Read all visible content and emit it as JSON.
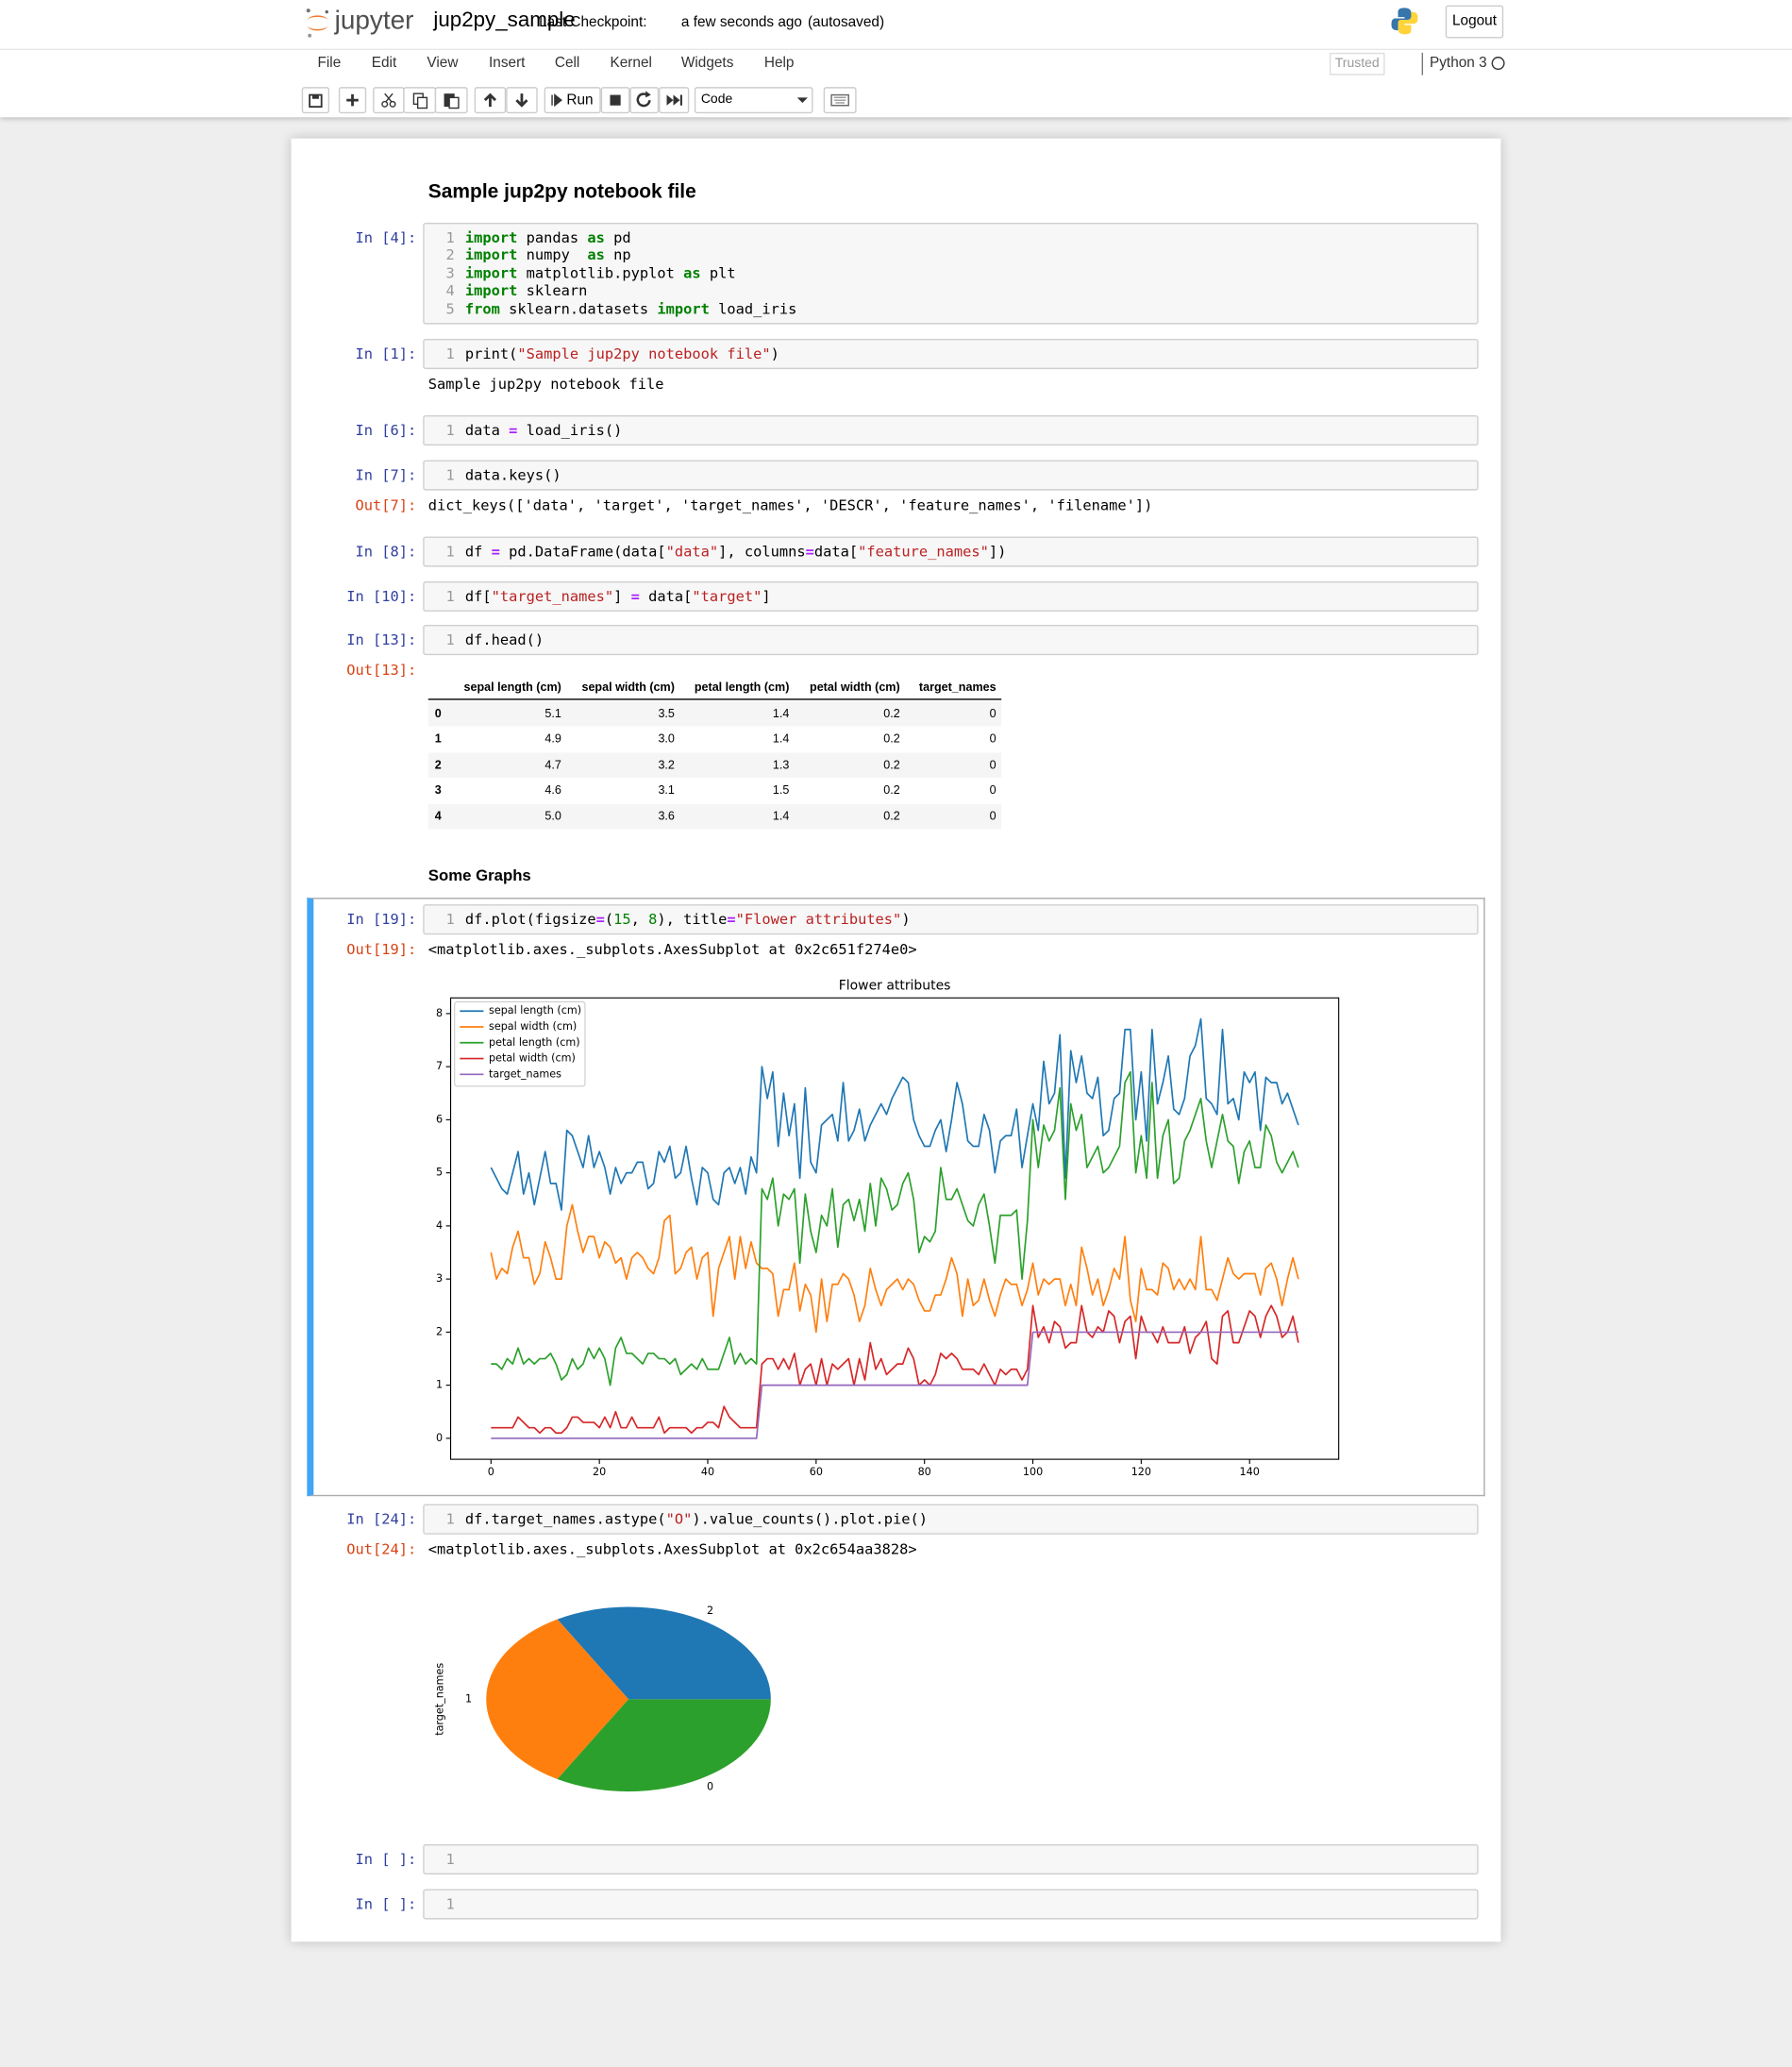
{
  "header": {
    "logo": "jupyter",
    "notebook_name": "jup2py_sample",
    "checkpoint_label": "Last Checkpoint:",
    "checkpoint_time": "a few seconds ago",
    "autosave": "(autosaved)",
    "logout": "Logout"
  },
  "menu": {
    "items": [
      "File",
      "Edit",
      "View",
      "Insert",
      "Cell",
      "Kernel",
      "Widgets",
      "Help"
    ],
    "trusted": "Trusted",
    "kernel": "Python 3"
  },
  "toolbar": {
    "run": "Run",
    "cell_type": "Code"
  },
  "cells": [
    {
      "type": "markdown",
      "text": "Sample jup2py notebook file"
    },
    {
      "type": "code",
      "prompt": "In [4]:",
      "lines": [
        [
          "1",
          "import pandas as pd"
        ],
        [
          "2",
          "import numpy  as np"
        ],
        [
          "3",
          "import matplotlib.pyplot as plt"
        ],
        [
          "4",
          "import sklearn"
        ],
        [
          "5",
          "from sklearn.datasets import load_iris"
        ]
      ]
    },
    {
      "type": "code",
      "prompt": "In [1]:",
      "lines": [
        [
          "1",
          "print(\"Sample jup2py notebook file\")"
        ]
      ],
      "output": "Sample jup2py notebook file"
    },
    {
      "type": "code",
      "prompt": "In [6]:",
      "lines": [
        [
          "1",
          "data = load_iris()"
        ]
      ]
    },
    {
      "type": "code",
      "prompt": "In [7]:",
      "lines": [
        [
          "1",
          "data.keys()"
        ]
      ],
      "out_prompt": "Out[7]:",
      "output": "dict_keys(['data', 'target', 'target_names', 'DESCR', 'feature_names', 'filename'])"
    },
    {
      "type": "code",
      "prompt": "In [8]:",
      "lines": [
        [
          "1",
          "df = pd.DataFrame(data[\"data\"], columns=data[\"feature_names\"])"
        ]
      ]
    },
    {
      "type": "code",
      "prompt": "In [10]:",
      "lines": [
        [
          "1",
          "df[\"target_names\"] = data[\"target\"]"
        ]
      ]
    },
    {
      "type": "code",
      "prompt": "In [13]:",
      "lines": [
        [
          "1",
          "df.head()"
        ]
      ],
      "out_prompt": "Out[13]:",
      "output_table": {
        "columns": [
          "sepal length (cm)",
          "sepal width (cm)",
          "petal length (cm)",
          "petal width (cm)",
          "target_names"
        ],
        "index": [
          "0",
          "1",
          "2",
          "3",
          "4"
        ],
        "rows": [
          [
            "5.1",
            "3.5",
            "1.4",
            "0.2",
            "0"
          ],
          [
            "4.9",
            "3.0",
            "1.4",
            "0.2",
            "0"
          ],
          [
            "4.7",
            "3.2",
            "1.3",
            "0.2",
            "0"
          ],
          [
            "4.6",
            "3.1",
            "1.5",
            "0.2",
            "0"
          ],
          [
            "5.0",
            "3.6",
            "1.4",
            "0.2",
            "0"
          ]
        ]
      }
    },
    {
      "type": "markdown",
      "text": "Some Graphs"
    },
    {
      "type": "code",
      "prompt": "In [19]:",
      "lines": [
        [
          "1",
          "df.plot(figsize=(15, 8), title=\"Flower attributes\")"
        ]
      ],
      "out_prompt": "Out[19]:",
      "output": "<matplotlib.axes._subplots.AxesSubplot at 0x2c651f274e0>"
    },
    {
      "type": "code",
      "prompt": "In [24]:",
      "lines": [
        [
          "1",
          "df.target_names.astype(\"O\").value_counts().plot.pie()"
        ]
      ],
      "out_prompt": "Out[24]:",
      "output": "<matplotlib.axes._subplots.AxesSubplot at 0x2c654aa3828>"
    },
    {
      "type": "code",
      "prompt": "In [ ]:",
      "lines": [
        [
          "1",
          ""
        ]
      ]
    },
    {
      "type": "code",
      "prompt": "In [ ]:",
      "lines": [
        [
          "1",
          ""
        ]
      ]
    }
  ],
  "chart_data": [
    {
      "type": "line",
      "title": "Flower attributes",
      "x": [
        0,
        1,
        2,
        3,
        4,
        5,
        6,
        7,
        8,
        9,
        10,
        11,
        12,
        13,
        14,
        15,
        16,
        17,
        18,
        19,
        20,
        21,
        22,
        23,
        24,
        25,
        26,
        27,
        28,
        29,
        30,
        31,
        32,
        33,
        34,
        35,
        36,
        37,
        38,
        39,
        40,
        41,
        42,
        43,
        44,
        45,
        46,
        47,
        48,
        49,
        50,
        51,
        52,
        53,
        54,
        55,
        56,
        57,
        58,
        59,
        60,
        61,
        62,
        63,
        64,
        65,
        66,
        67,
        68,
        69,
        70,
        71,
        72,
        73,
        74,
        75,
        76,
        77,
        78,
        79,
        80,
        81,
        82,
        83,
        84,
        85,
        86,
        87,
        88,
        89,
        90,
        91,
        92,
        93,
        94,
        95,
        96,
        97,
        98,
        99,
        100,
        101,
        102,
        103,
        104,
        105,
        106,
        107,
        108,
        109,
        110,
        111,
        112,
        113,
        114,
        115,
        116,
        117,
        118,
        119,
        120,
        121,
        122,
        123,
        124,
        125,
        126,
        127,
        128,
        129,
        130,
        131,
        132,
        133,
        134,
        135,
        136,
        137,
        138,
        139,
        140,
        141,
        142,
        143,
        144,
        145,
        146,
        147,
        148,
        149
      ],
      "series": [
        {
          "name": "sepal length (cm)",
          "color": "#1f77b4",
          "values": [
            5.1,
            4.9,
            4.7,
            4.6,
            5.0,
            5.4,
            4.6,
            5.0,
            4.4,
            4.9,
            5.4,
            4.8,
            4.8,
            4.3,
            5.8,
            5.7,
            5.4,
            5.1,
            5.7,
            5.1,
            5.4,
            5.1,
            4.6,
            5.1,
            4.8,
            5.0,
            5.0,
            5.2,
            5.2,
            4.7,
            4.8,
            5.4,
            5.2,
            5.5,
            4.9,
            5.0,
            5.5,
            4.9,
            4.4,
            5.1,
            5.0,
            4.5,
            4.4,
            5.0,
            5.1,
            4.8,
            5.1,
            4.6,
            5.3,
            5.0,
            7.0,
            6.4,
            6.9,
            5.5,
            6.5,
            5.7,
            6.3,
            4.9,
            6.6,
            5.2,
            5.0,
            5.9,
            6.0,
            6.1,
            5.6,
            6.7,
            5.6,
            5.8,
            6.2,
            5.6,
            5.9,
            6.1,
            6.3,
            6.1,
            6.4,
            6.6,
            6.8,
            6.7,
            6.0,
            5.7,
            5.5,
            5.5,
            5.8,
            6.0,
            5.4,
            6.0,
            6.7,
            6.3,
            5.6,
            5.5,
            5.5,
            6.1,
            5.8,
            5.0,
            5.6,
            5.7,
            5.7,
            6.2,
            5.1,
            5.7,
            6.3,
            5.8,
            7.1,
            6.3,
            6.5,
            7.6,
            4.9,
            7.3,
            6.7,
            7.2,
            6.5,
            6.4,
            6.8,
            5.7,
            5.8,
            6.4,
            6.5,
            7.7,
            7.7,
            6.0,
            6.9,
            5.6,
            7.7,
            6.3,
            6.7,
            7.2,
            6.2,
            6.1,
            6.4,
            7.2,
            7.4,
            7.9,
            6.4,
            6.3,
            6.1,
            7.7,
            6.3,
            6.4,
            6.0,
            6.9,
            6.7,
            6.9,
            5.8,
            6.8,
            6.7,
            6.7,
            6.3,
            6.5,
            6.2,
            5.9
          ]
        },
        {
          "name": "sepal width (cm)",
          "color": "#ff7f0e",
          "values": [
            3.5,
            3.0,
            3.2,
            3.1,
            3.6,
            3.9,
            3.4,
            3.4,
            2.9,
            3.1,
            3.7,
            3.4,
            3.0,
            3.0,
            4.0,
            4.4,
            3.9,
            3.5,
            3.8,
            3.8,
            3.4,
            3.7,
            3.6,
            3.3,
            3.4,
            3.0,
            3.4,
            3.5,
            3.4,
            3.2,
            3.1,
            3.4,
            4.1,
            4.2,
            3.1,
            3.2,
            3.5,
            3.6,
            3.0,
            3.4,
            3.5,
            2.3,
            3.2,
            3.5,
            3.8,
            3.0,
            3.8,
            3.2,
            3.7,
            3.3,
            3.2,
            3.2,
            3.1,
            2.3,
            2.8,
            2.8,
            3.3,
            2.4,
            2.9,
            2.7,
            2.0,
            3.0,
            2.2,
            2.9,
            2.9,
            3.1,
            3.0,
            2.7,
            2.2,
            2.5,
            3.2,
            2.8,
            2.5,
            2.8,
            2.9,
            3.0,
            2.8,
            3.0,
            2.9,
            2.6,
            2.4,
            2.4,
            2.7,
            2.7,
            3.0,
            3.4,
            3.1,
            2.3,
            3.0,
            2.5,
            2.6,
            3.0,
            2.6,
            2.3,
            2.7,
            3.0,
            2.9,
            2.9,
            2.5,
            2.8,
            3.3,
            2.7,
            3.0,
            2.9,
            3.0,
            3.0,
            2.5,
            2.9,
            2.5,
            3.6,
            3.2,
            2.7,
            3.0,
            2.5,
            2.8,
            3.2,
            3.0,
            3.8,
            2.6,
            2.2,
            3.2,
            2.8,
            2.8,
            2.7,
            3.3,
            3.2,
            2.8,
            3.0,
            2.8,
            3.0,
            2.8,
            3.8,
            2.8,
            2.8,
            2.6,
            3.0,
            3.4,
            3.1,
            3.0,
            3.1,
            3.1,
            3.1,
            2.7,
            3.2,
            3.3,
            3.0,
            2.5,
            3.0,
            3.4,
            3.0
          ]
        },
        {
          "name": "petal length (cm)",
          "color": "#2ca02c",
          "values": [
            1.4,
            1.4,
            1.3,
            1.5,
            1.4,
            1.7,
            1.4,
            1.5,
            1.4,
            1.5,
            1.5,
            1.6,
            1.4,
            1.1,
            1.2,
            1.5,
            1.3,
            1.4,
            1.7,
            1.5,
            1.7,
            1.5,
            1.0,
            1.7,
            1.9,
            1.6,
            1.6,
            1.5,
            1.4,
            1.6,
            1.6,
            1.5,
            1.5,
            1.4,
            1.5,
            1.2,
            1.3,
            1.4,
            1.3,
            1.5,
            1.3,
            1.3,
            1.3,
            1.6,
            1.9,
            1.4,
            1.6,
            1.4,
            1.5,
            1.4,
            4.7,
            4.5,
            4.9,
            4.0,
            4.6,
            4.5,
            4.7,
            3.3,
            4.6,
            3.9,
            3.5,
            4.2,
            4.0,
            4.7,
            3.6,
            4.4,
            4.5,
            4.1,
            4.5,
            3.9,
            4.8,
            4.0,
            4.9,
            4.7,
            4.3,
            4.4,
            4.8,
            5.0,
            4.5,
            3.5,
            3.8,
            3.7,
            3.9,
            5.1,
            4.5,
            4.5,
            4.7,
            4.4,
            4.1,
            4.0,
            4.4,
            4.6,
            4.0,
            3.3,
            4.2,
            4.2,
            4.2,
            4.3,
            3.0,
            4.1,
            6.0,
            5.1,
            5.9,
            5.6,
            5.8,
            6.6,
            4.5,
            6.3,
            5.8,
            6.1,
            5.1,
            5.3,
            5.5,
            5.0,
            5.1,
            5.3,
            5.5,
            6.7,
            6.9,
            5.0,
            5.7,
            4.9,
            6.7,
            4.9,
            5.7,
            6.0,
            4.8,
            4.9,
            5.6,
            5.8,
            6.1,
            6.4,
            5.6,
            5.1,
            5.6,
            6.1,
            5.6,
            5.5,
            4.8,
            5.4,
            5.6,
            5.1,
            5.1,
            5.9,
            5.7,
            5.2,
            5.0,
            5.2,
            5.4,
            5.1
          ]
        },
        {
          "name": "petal width (cm)",
          "color": "#d62728",
          "values": [
            0.2,
            0.2,
            0.2,
            0.2,
            0.2,
            0.4,
            0.3,
            0.2,
            0.2,
            0.1,
            0.2,
            0.2,
            0.1,
            0.1,
            0.2,
            0.4,
            0.4,
            0.3,
            0.3,
            0.3,
            0.2,
            0.4,
            0.2,
            0.5,
            0.2,
            0.2,
            0.4,
            0.2,
            0.2,
            0.2,
            0.2,
            0.4,
            0.1,
            0.2,
            0.2,
            0.2,
            0.2,
            0.1,
            0.2,
            0.2,
            0.3,
            0.3,
            0.2,
            0.6,
            0.4,
            0.3,
            0.2,
            0.2,
            0.2,
            0.2,
            1.4,
            1.5,
            1.5,
            1.3,
            1.5,
            1.3,
            1.6,
            1.0,
            1.3,
            1.4,
            1.0,
            1.5,
            1.0,
            1.4,
            1.3,
            1.4,
            1.5,
            1.0,
            1.5,
            1.1,
            1.8,
            1.3,
            1.5,
            1.2,
            1.3,
            1.4,
            1.4,
            1.7,
            1.5,
            1.0,
            1.1,
            1.0,
            1.2,
            1.6,
            1.5,
            1.6,
            1.5,
            1.3,
            1.3,
            1.3,
            1.2,
            1.4,
            1.2,
            1.0,
            1.3,
            1.2,
            1.3,
            1.3,
            1.1,
            1.3,
            2.5,
            1.9,
            2.1,
            1.8,
            2.2,
            2.1,
            1.7,
            1.8,
            1.8,
            2.5,
            2.0,
            1.9,
            2.1,
            2.0,
            2.4,
            2.3,
            1.8,
            2.2,
            2.3,
            1.5,
            2.3,
            2.0,
            2.0,
            1.8,
            2.1,
            1.8,
            1.8,
            1.8,
            2.1,
            1.6,
            1.9,
            2.0,
            2.2,
            1.5,
            1.4,
            2.3,
            2.4,
            1.8,
            1.8,
            2.1,
            2.4,
            2.3,
            1.9,
            2.3,
            2.5,
            2.3,
            1.9,
            2.0,
            2.3,
            1.8
          ]
        },
        {
          "name": "target_names",
          "color": "#9467bd",
          "values": [
            0,
            0,
            0,
            0,
            0,
            0,
            0,
            0,
            0,
            0,
            0,
            0,
            0,
            0,
            0,
            0,
            0,
            0,
            0,
            0,
            0,
            0,
            0,
            0,
            0,
            0,
            0,
            0,
            0,
            0,
            0,
            0,
            0,
            0,
            0,
            0,
            0,
            0,
            0,
            0,
            0,
            0,
            0,
            0,
            0,
            0,
            0,
            0,
            0,
            0,
            1,
            1,
            1,
            1,
            1,
            1,
            1,
            1,
            1,
            1,
            1,
            1,
            1,
            1,
            1,
            1,
            1,
            1,
            1,
            1,
            1,
            1,
            1,
            1,
            1,
            1,
            1,
            1,
            1,
            1,
            1,
            1,
            1,
            1,
            1,
            1,
            1,
            1,
            1,
            1,
            1,
            1,
            1,
            1,
            1,
            1,
            1,
            1,
            1,
            1,
            2,
            2,
            2,
            2,
            2,
            2,
            2,
            2,
            2,
            2,
            2,
            2,
            2,
            2,
            2,
            2,
            2,
            2,
            2,
            2,
            2,
            2,
            2,
            2,
            2,
            2,
            2,
            2,
            2,
            2,
            2,
            2,
            2,
            2,
            2,
            2,
            2,
            2,
            2,
            2,
            2,
            2,
            2,
            2,
            2,
            2,
            2,
            2,
            2,
            2
          ]
        }
      ],
      "xlim": [
        -7.45,
        156.45
      ],
      "ylim": [
        -0.395,
        8.295
      ],
      "xticks": [
        0,
        20,
        40,
        60,
        80,
        100,
        120,
        140
      ],
      "yticks": [
        0,
        1,
        2,
        3,
        4,
        5,
        6,
        7,
        8
      ],
      "legend": "upper left"
    },
    {
      "type": "pie",
      "categories": [
        "2",
        "1",
        "0"
      ],
      "values": [
        50,
        50,
        50
      ],
      "colors": [
        "#1f77b4",
        "#ff7f0e",
        "#2ca02c"
      ],
      "ylabel": "target_names"
    }
  ]
}
